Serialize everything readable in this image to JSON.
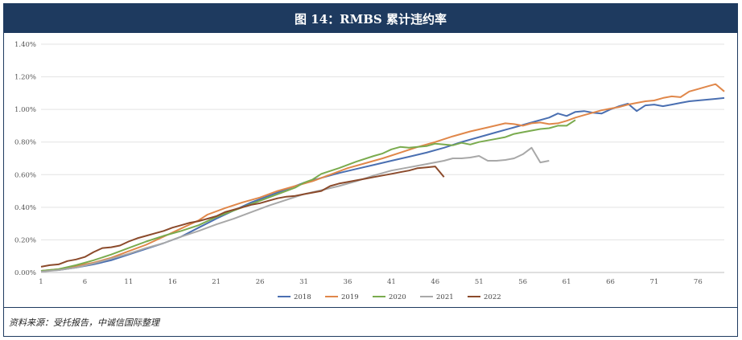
{
  "header": {
    "title": "图 14：RMBS 累计违约率"
  },
  "footer": {
    "source": "资料来源：受托报告，中诚信国际整理"
  },
  "chart_data": {
    "type": "line",
    "title": "图 14：RMBS 累计违约率",
    "xlabel": "",
    "ylabel": "",
    "xlim": [
      1,
      79
    ],
    "ylim": [
      0,
      1.4
    ],
    "x_ticks": [
      1,
      6,
      11,
      16,
      21,
      26,
      31,
      36,
      41,
      46,
      51,
      56,
      61,
      66,
      71,
      76
    ],
    "y_ticks": [
      "0.00%",
      "0.20%",
      "0.40%",
      "0.60%",
      "0.80%",
      "1.00%",
      "1.20%",
      "1.40%"
    ],
    "y_tick_values": [
      0,
      0.2,
      0.4,
      0.6,
      0.8,
      1.0,
      1.2,
      1.4
    ],
    "grid": "horizontal",
    "legend": "bottom",
    "series": [
      {
        "name": "2018",
        "color": "#4a6fb1",
        "points": [
          [
            1,
            0.01
          ],
          [
            3,
            0.015
          ],
          [
            5,
            0.03
          ],
          [
            7,
            0.05
          ],
          [
            9,
            0.075
          ],
          [
            11,
            0.11
          ],
          [
            13,
            0.145
          ],
          [
            15,
            0.18
          ],
          [
            17,
            0.22
          ],
          [
            19,
            0.275
          ],
          [
            21,
            0.33
          ],
          [
            23,
            0.38
          ],
          [
            25,
            0.43
          ],
          [
            27,
            0.47
          ],
          [
            29,
            0.51
          ],
          [
            31,
            0.55
          ],
          [
            33,
            0.58
          ],
          [
            35,
            0.61
          ],
          [
            37,
            0.635
          ],
          [
            39,
            0.66
          ],
          [
            41,
            0.685
          ],
          [
            43,
            0.71
          ],
          [
            45,
            0.735
          ],
          [
            47,
            0.765
          ],
          [
            49,
            0.8
          ],
          [
            51,
            0.83
          ],
          [
            53,
            0.86
          ],
          [
            55,
            0.89
          ],
          [
            57,
            0.92
          ],
          [
            59,
            0.95
          ],
          [
            60,
            0.975
          ],
          [
            61,
            0.96
          ],
          [
            62,
            0.985
          ],
          [
            63,
            0.99
          ],
          [
            64,
            0.98
          ],
          [
            65,
            0.975
          ],
          [
            66,
            1.0
          ],
          [
            67,
            1.02
          ],
          [
            68,
            1.035
          ],
          [
            69,
            0.99
          ],
          [
            70,
            1.025
          ],
          [
            71,
            1.03
          ],
          [
            72,
            1.02
          ],
          [
            73,
            1.03
          ],
          [
            74,
            1.04
          ],
          [
            75,
            1.05
          ],
          [
            76,
            1.055
          ],
          [
            77,
            1.06
          ],
          [
            78,
            1.065
          ],
          [
            79,
            1.07
          ]
        ]
      },
      {
        "name": "2019",
        "color": "#e0874a",
        "points": [
          [
            1,
            0.01
          ],
          [
            3,
            0.02
          ],
          [
            5,
            0.04
          ],
          [
            7,
            0.06
          ],
          [
            9,
            0.09
          ],
          [
            11,
            0.13
          ],
          [
            13,
            0.17
          ],
          [
            15,
            0.22
          ],
          [
            17,
            0.27
          ],
          [
            19,
            0.32
          ],
          [
            20,
            0.355
          ],
          [
            22,
            0.395
          ],
          [
            24,
            0.43
          ],
          [
            26,
            0.46
          ],
          [
            28,
            0.5
          ],
          [
            30,
            0.53
          ],
          [
            32,
            0.56
          ],
          [
            34,
            0.6
          ],
          [
            36,
            0.64
          ],
          [
            38,
            0.67
          ],
          [
            40,
            0.7
          ],
          [
            42,
            0.735
          ],
          [
            44,
            0.77
          ],
          [
            46,
            0.8
          ],
          [
            48,
            0.835
          ],
          [
            50,
            0.865
          ],
          [
            52,
            0.89
          ],
          [
            54,
            0.915
          ],
          [
            55,
            0.91
          ],
          [
            56,
            0.9
          ],
          [
            57,
            0.915
          ],
          [
            58,
            0.92
          ],
          [
            59,
            0.91
          ],
          [
            60,
            0.915
          ],
          [
            61,
            0.93
          ],
          [
            62,
            0.95
          ],
          [
            63,
            0.965
          ],
          [
            64,
            0.98
          ],
          [
            65,
            0.995
          ],
          [
            66,
            1.005
          ],
          [
            67,
            1.015
          ],
          [
            68,
            1.03
          ],
          [
            69,
            1.04
          ],
          [
            70,
            1.05
          ],
          [
            71,
            1.055
          ],
          [
            72,
            1.07
          ],
          [
            73,
            1.08
          ],
          [
            74,
            1.075
          ],
          [
            75,
            1.11
          ],
          [
            76,
            1.125
          ],
          [
            77,
            1.14
          ],
          [
            78,
            1.155
          ],
          [
            79,
            1.11
          ]
        ]
      },
      {
        "name": "2020",
        "color": "#7aab4e",
        "points": [
          [
            1,
            0.01
          ],
          [
            3,
            0.02
          ],
          [
            5,
            0.045
          ],
          [
            7,
            0.075
          ],
          [
            9,
            0.11
          ],
          [
            11,
            0.15
          ],
          [
            13,
            0.19
          ],
          [
            15,
            0.225
          ],
          [
            17,
            0.255
          ],
          [
            19,
            0.29
          ],
          [
            21,
            0.34
          ],
          [
            23,
            0.38
          ],
          [
            25,
            0.42
          ],
          [
            27,
            0.46
          ],
          [
            29,
            0.5
          ],
          [
            30,
            0.52
          ],
          [
            31,
            0.55
          ],
          [
            32,
            0.57
          ],
          [
            33,
            0.605
          ],
          [
            35,
            0.64
          ],
          [
            37,
            0.68
          ],
          [
            39,
            0.715
          ],
          [
            40,
            0.73
          ],
          [
            41,
            0.755
          ],
          [
            42,
            0.77
          ],
          [
            43,
            0.765
          ],
          [
            44,
            0.77
          ],
          [
            45,
            0.775
          ],
          [
            46,
            0.79
          ],
          [
            47,
            0.785
          ],
          [
            48,
            0.78
          ],
          [
            49,
            0.795
          ],
          [
            50,
            0.785
          ],
          [
            51,
            0.8
          ],
          [
            52,
            0.81
          ],
          [
            53,
            0.82
          ],
          [
            54,
            0.83
          ],
          [
            55,
            0.85
          ],
          [
            56,
            0.86
          ],
          [
            57,
            0.87
          ],
          [
            58,
            0.88
          ],
          [
            59,
            0.885
          ],
          [
            60,
            0.9
          ],
          [
            61,
            0.9
          ],
          [
            62,
            0.935
          ]
        ]
      },
      {
        "name": "2021",
        "color": "#a8a8a8",
        "points": [
          [
            1,
            0.005
          ],
          [
            3,
            0.015
          ],
          [
            5,
            0.03
          ],
          [
            7,
            0.055
          ],
          [
            9,
            0.085
          ],
          [
            11,
            0.115
          ],
          [
            13,
            0.15
          ],
          [
            15,
            0.18
          ],
          [
            17,
            0.22
          ],
          [
            19,
            0.255
          ],
          [
            21,
            0.295
          ],
          [
            23,
            0.33
          ],
          [
            25,
            0.37
          ],
          [
            27,
            0.41
          ],
          [
            29,
            0.445
          ],
          [
            31,
            0.48
          ],
          [
            33,
            0.505
          ],
          [
            35,
            0.53
          ],
          [
            37,
            0.56
          ],
          [
            39,
            0.595
          ],
          [
            41,
            0.625
          ],
          [
            43,
            0.645
          ],
          [
            45,
            0.665
          ],
          [
            47,
            0.685
          ],
          [
            48,
            0.7
          ],
          [
            49,
            0.7
          ],
          [
            50,
            0.705
          ],
          [
            51,
            0.715
          ],
          [
            52,
            0.685
          ],
          [
            53,
            0.685
          ],
          [
            54,
            0.69
          ],
          [
            55,
            0.7
          ],
          [
            56,
            0.725
          ],
          [
            57,
            0.765
          ],
          [
            58,
            0.675
          ],
          [
            59,
            0.685
          ]
        ]
      },
      {
        "name": "2022",
        "color": "#8b4a2b",
        "points": [
          [
            1,
            0.035
          ],
          [
            2,
            0.045
          ],
          [
            3,
            0.05
          ],
          [
            4,
            0.07
          ],
          [
            5,
            0.08
          ],
          [
            6,
            0.095
          ],
          [
            7,
            0.125
          ],
          [
            8,
            0.15
          ],
          [
            9,
            0.155
          ],
          [
            10,
            0.165
          ],
          [
            11,
            0.19
          ],
          [
            12,
            0.21
          ],
          [
            13,
            0.225
          ],
          [
            14,
            0.24
          ],
          [
            15,
            0.255
          ],
          [
            16,
            0.275
          ],
          [
            17,
            0.29
          ],
          [
            18,
            0.305
          ],
          [
            19,
            0.315
          ],
          [
            20,
            0.33
          ],
          [
            21,
            0.345
          ],
          [
            22,
            0.37
          ],
          [
            23,
            0.385
          ],
          [
            24,
            0.4
          ],
          [
            25,
            0.415
          ],
          [
            26,
            0.425
          ],
          [
            27,
            0.44
          ],
          [
            28,
            0.455
          ],
          [
            29,
            0.465
          ],
          [
            30,
            0.47
          ],
          [
            31,
            0.48
          ],
          [
            32,
            0.49
          ],
          [
            33,
            0.5
          ],
          [
            34,
            0.53
          ],
          [
            35,
            0.545
          ],
          [
            36,
            0.555
          ],
          [
            37,
            0.565
          ],
          [
            38,
            0.575
          ],
          [
            39,
            0.585
          ],
          [
            40,
            0.595
          ],
          [
            41,
            0.605
          ],
          [
            42,
            0.615
          ],
          [
            43,
            0.625
          ],
          [
            44,
            0.64
          ],
          [
            45,
            0.645
          ],
          [
            46,
            0.65
          ],
          [
            47,
            0.585
          ]
        ]
      }
    ]
  }
}
